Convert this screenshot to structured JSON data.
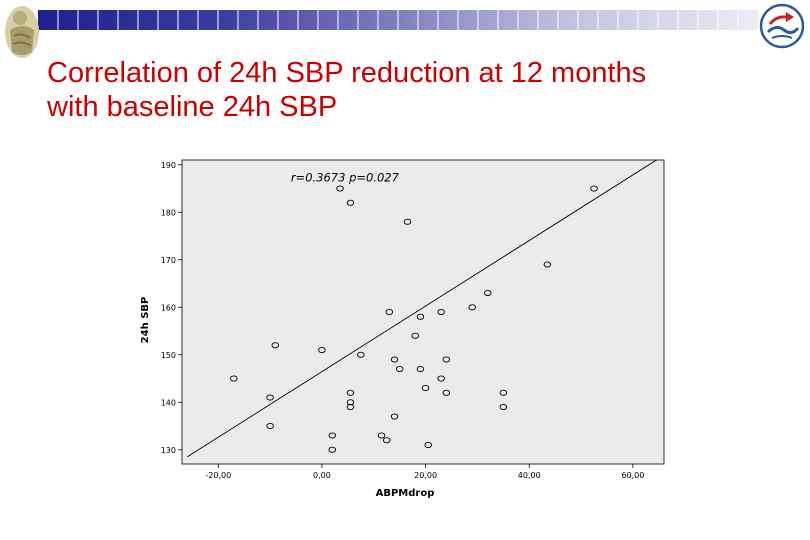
{
  "slide": {
    "title_line1": "Correlation of 24h SBP reduction at 12 months",
    "title_line2": "with baseline 24h SBP",
    "accent_color": "#cc0000",
    "band_colors": [
      "#1f1f8f",
      "#3b3b9e",
      "#7f7fbf",
      "#c4c4e0",
      "#ecebf5"
    ]
  },
  "chart_data": {
    "type": "scatter",
    "xlabel": "ABPMdrop",
    "ylabel": "24h SBP",
    "annotation": "r=0.3673 p=0.027",
    "xlim": [
      -27,
      66
    ],
    "ylim": [
      127,
      191
    ],
    "xticks": [
      -20,
      0,
      20,
      40,
      60
    ],
    "xtick_labels": [
      "-20,00",
      "0,00",
      "20,00",
      "40,00",
      "60,00"
    ],
    "yticks": [
      130,
      140,
      150,
      160,
      170,
      180,
      190
    ],
    "ytick_labels": [
      "130",
      "140",
      "150",
      "160",
      "170",
      "180",
      "190"
    ],
    "grid": false,
    "background_color": "#ebebeb",
    "fit_line": {
      "x": [
        -26,
        66
      ],
      "y": [
        128.5,
        192.0
      ]
    },
    "points": [
      {
        "x": 3.5,
        "y": 185.0
      },
      {
        "x": 5.5,
        "y": 182.0
      },
      {
        "x": 16.5,
        "y": 178.0
      },
      {
        "x": 52.5,
        "y": 185.0
      },
      {
        "x": 43.5,
        "y": 169.0
      },
      {
        "x": 32.0,
        "y": 163.0
      },
      {
        "x": 13.0,
        "y": 159.0
      },
      {
        "x": 19.0,
        "y": 158.0
      },
      {
        "x": 23.0,
        "y": 159.0
      },
      {
        "x": 29.0,
        "y": 160.0
      },
      {
        "x": 18.0,
        "y": 154.0
      },
      {
        "x": -9.0,
        "y": 152.0
      },
      {
        "x": 0.0,
        "y": 151.0
      },
      {
        "x": 7.5,
        "y": 150.0
      },
      {
        "x": 14.0,
        "y": 149.0
      },
      {
        "x": 24.0,
        "y": 149.0
      },
      {
        "x": 15.0,
        "y": 147.0
      },
      {
        "x": 19.0,
        "y": 147.0
      },
      {
        "x": -17.0,
        "y": 145.0
      },
      {
        "x": 23.0,
        "y": 145.0
      },
      {
        "x": 20.0,
        "y": 143.0
      },
      {
        "x": -10.0,
        "y": 141.0
      },
      {
        "x": 5.5,
        "y": 142.0
      },
      {
        "x": 24.0,
        "y": 142.0
      },
      {
        "x": 35.0,
        "y": 142.0
      },
      {
        "x": 5.5,
        "y": 140.0
      },
      {
        "x": 5.5,
        "y": 139.0
      },
      {
        "x": 35.0,
        "y": 139.0
      },
      {
        "x": 14.0,
        "y": 137.0
      },
      {
        "x": -10.0,
        "y": 135.0
      },
      {
        "x": 2.0,
        "y": 133.0
      },
      {
        "x": 11.5,
        "y": 133.0
      },
      {
        "x": 12.5,
        "y": 132.0
      },
      {
        "x": 20.5,
        "y": 131.0
      },
      {
        "x": 2.0,
        "y": 130.0
      }
    ]
  }
}
